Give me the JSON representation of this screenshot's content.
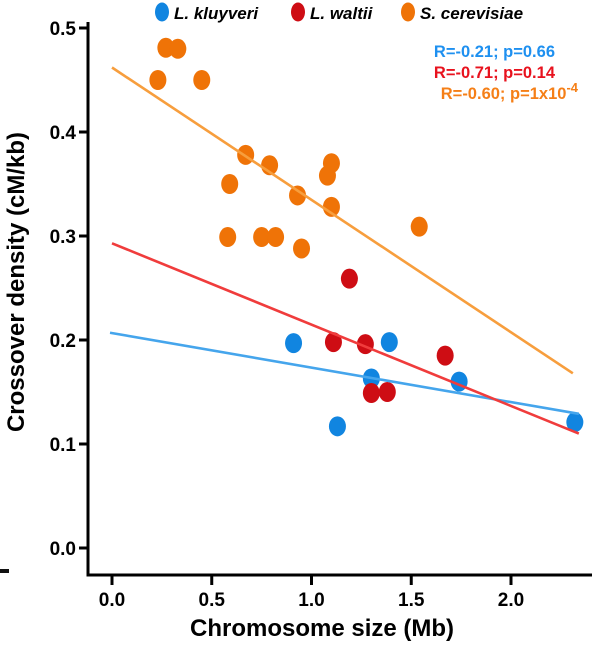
{
  "figure": {
    "legend": [
      {
        "label": "L. kluyveri",
        "marker": "dot-icon",
        "color": "#1185E0"
      },
      {
        "label": "L. waltii",
        "marker": "dot-icon",
        "color": "#CE0D14"
      },
      {
        "label": "S. cerevisiae",
        "marker": "dot-icon",
        "color": "#EF7307"
      }
    ],
    "stats": [
      {
        "text": "R=-0.21; p=0.66",
        "sup": "",
        "color": "#1E90F0"
      },
      {
        "text": "R=-0.71; p=0.14",
        "sup": "",
        "color": "#E8121E"
      },
      {
        "text": "R=-0.60; p=1x10",
        "sup": "-4",
        "color": "#F57F17"
      }
    ]
  },
  "chart_data": {
    "type": "scatter",
    "title": "",
    "xlabel": "Chromosome size (Mb)",
    "ylabel": "Crossover density (cM/kb)",
    "x_ticks": [
      0.0,
      0.5,
      1.0,
      1.5,
      2.0
    ],
    "y_ticks": [
      0.0,
      0.1,
      0.2,
      0.3,
      0.4,
      0.5
    ],
    "xlim": [
      -0.12,
      2.41
    ],
    "ylim": [
      -0.026,
      0.506
    ],
    "grid": false,
    "legend_position": "top",
    "series": [
      {
        "name": "L. kluyveri",
        "marker_color": "#1185E0",
        "line_color": "#45A5EC",
        "stats": "R=-0.21; p=0.66",
        "points": [
          [
            0.91,
            0.197
          ],
          [
            1.39,
            0.198
          ],
          [
            1.3,
            0.163
          ],
          [
            1.74,
            0.16
          ],
          [
            1.13,
            0.117
          ],
          [
            2.32,
            0.121
          ]
        ],
        "trend": {
          "x1": -0.01,
          "y1": 0.207,
          "x2": 2.34,
          "y2": 0.129
        }
      },
      {
        "name": "L. waltii",
        "marker_color": "#CE0D14",
        "line_color": "#F03C3C",
        "stats": "R=-0.71; p=0.14",
        "points": [
          [
            1.19,
            0.259
          ],
          [
            1.11,
            0.198
          ],
          [
            1.27,
            0.196
          ],
          [
            1.67,
            0.185
          ],
          [
            1.3,
            0.149
          ],
          [
            1.38,
            0.15
          ]
        ],
        "trend": {
          "x1": 0.0,
          "y1": 0.293,
          "x2": 2.34,
          "y2": 0.11
        }
      },
      {
        "name": "S. cerevisiae",
        "marker_color": "#EF7307",
        "line_color": "#F79E3D",
        "stats": "R=-0.60; p=1x10^-4",
        "points": [
          [
            0.27,
            0.481
          ],
          [
            0.33,
            0.48
          ],
          [
            0.23,
            0.45
          ],
          [
            0.45,
            0.45
          ],
          [
            0.67,
            0.378
          ],
          [
            0.79,
            0.368
          ],
          [
            1.1,
            0.37
          ],
          [
            1.08,
            0.358
          ],
          [
            0.59,
            0.35
          ],
          [
            0.93,
            0.339
          ],
          [
            1.1,
            0.328
          ],
          [
            1.54,
            0.309
          ],
          [
            0.58,
            0.299
          ],
          [
            0.75,
            0.299
          ],
          [
            0.82,
            0.299
          ],
          [
            0.95,
            0.288
          ]
        ],
        "trend": {
          "x1": 0.0,
          "y1": 0.462,
          "x2": 2.31,
          "y2": 0.168
        }
      }
    ]
  }
}
